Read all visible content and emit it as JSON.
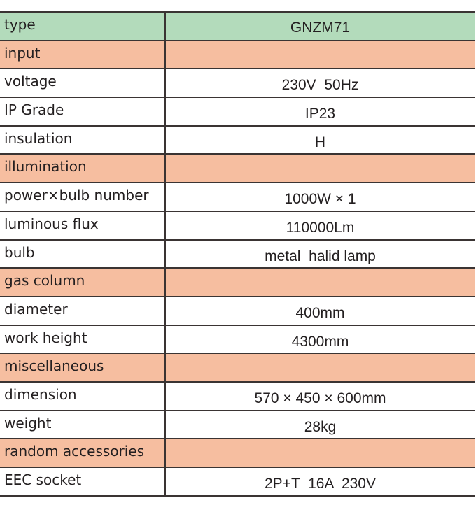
{
  "table": {
    "rows": [
      {
        "label": "type",
        "value": "GNZM71",
        "kind": "header"
      },
      {
        "label": "input",
        "value": "",
        "kind": "section"
      },
      {
        "label": "voltage",
        "value": "230V  50Hz",
        "kind": "data"
      },
      {
        "label": "IP Grade",
        "value": "IP23",
        "kind": "data"
      },
      {
        "label": "insulation",
        "value": "H",
        "kind": "data"
      },
      {
        "label": "illumination",
        "value": "",
        "kind": "section"
      },
      {
        "label": "power×bulb number",
        "value": "1000W × 1",
        "kind": "data"
      },
      {
        "label": "luminous flux",
        "value": "110000Lm",
        "kind": "data"
      },
      {
        "label": "bulb",
        "value": "metal  halid lamp",
        "kind": "data"
      },
      {
        "label": "gas column",
        "value": "",
        "kind": "section"
      },
      {
        "label": "diameter",
        "value": "400mm",
        "kind": "data"
      },
      {
        "label": "work height",
        "value": "4300mm",
        "kind": "data"
      },
      {
        "label": "miscellaneous",
        "value": "",
        "kind": "section"
      },
      {
        "label": "dimension",
        "value": "570 × 450 × 600mm",
        "kind": "data"
      },
      {
        "label": "weight",
        "value": "28kg",
        "kind": "data"
      },
      {
        "label": "random accessories",
        "value": "",
        "kind": "section"
      },
      {
        "label": "EEC socket",
        "value": "2P+T  16A  230V",
        "kind": "data"
      }
    ]
  },
  "colors": {
    "header": "#b3dbbb",
    "section": "#f6bea0",
    "border": "#3a3433"
  }
}
